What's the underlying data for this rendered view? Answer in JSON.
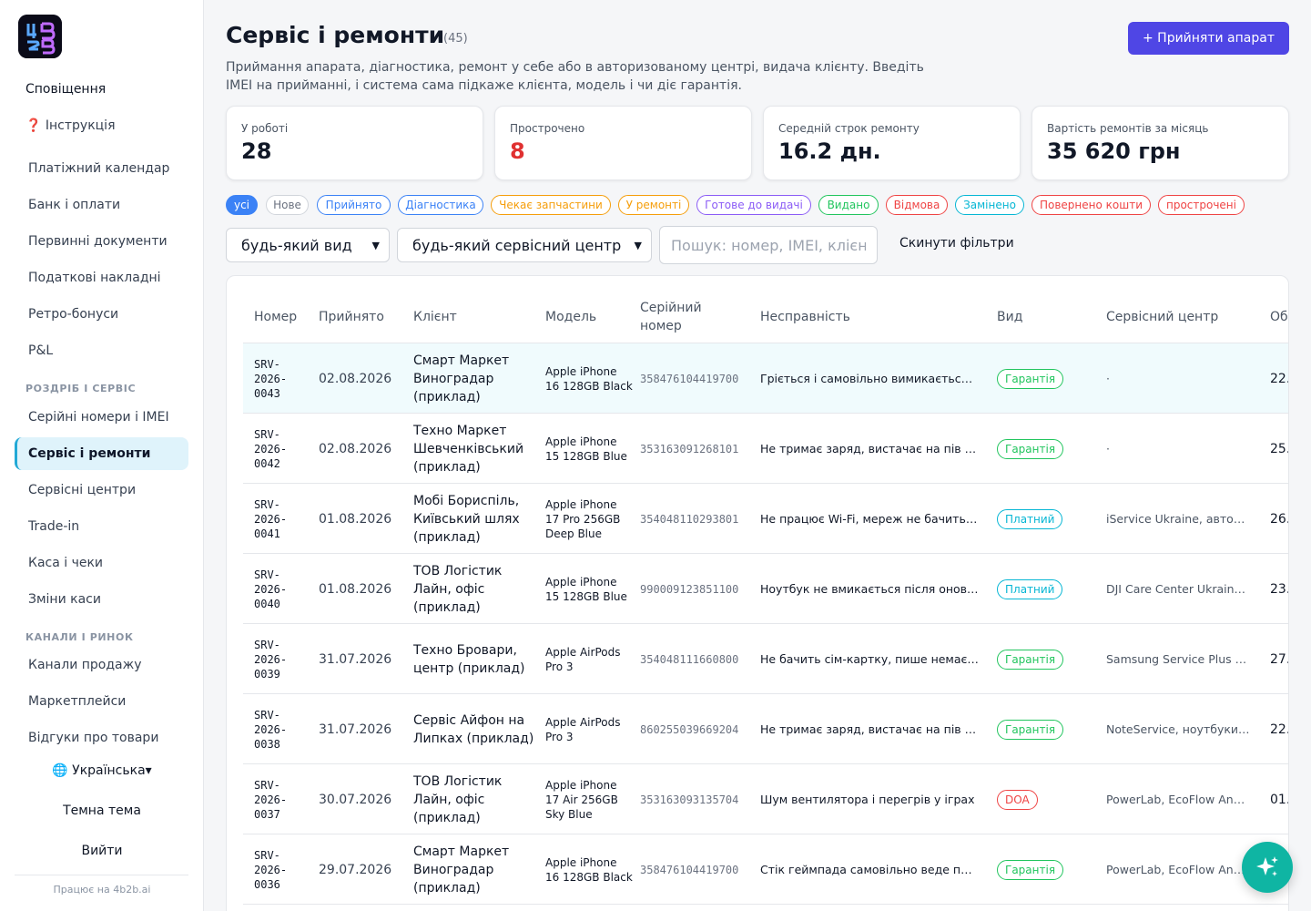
{
  "sidebar": {
    "notifications": "Сповіщення",
    "instructions": "❓ Інструкція",
    "items_top": [
      "Платіжний календар",
      "Банк і оплати",
      "Первинні документи",
      "Податкові накладні",
      "Ретро-бонуси",
      "P&L"
    ],
    "section_retail": "РОЗДРІБ І СЕРВІС",
    "items_retail": [
      "Серійні номери і IMEI",
      "Сервіс і ремонти",
      "Сервісні центри",
      "Trade-in",
      "Каса і чеки",
      "Зміни каси"
    ],
    "section_channels": "КАНАЛИ І РИНОК",
    "items_channels": [
      "Канали продажу",
      "Маркетплейси",
      "Відгуки про товари"
    ],
    "language": "🌐 Українська▾",
    "theme": "Темна тема",
    "logout": "Вийти",
    "powered": "Працює на 4b2b.ai"
  },
  "header": {
    "title": "Сервіс і ремонти",
    "count": "(45)",
    "description": "Приймання апарата, діагностика, ремонт у себе або в авторизованому центрі, видача клієнту. Введіть IMEI на прийманні, і система сама підкаже клієнта, модель і чи діє гарантія.",
    "primary_button": "+ Прийняти апарат"
  },
  "stats": [
    {
      "label": "У роботі",
      "value": "28"
    },
    {
      "label": "Прострочено",
      "value": "8"
    },
    {
      "label": "Середній строк ремонту",
      "value": "16.2 дн."
    },
    {
      "label": "Вартість ремонтів за місяць",
      "value": "35 620 грн"
    }
  ],
  "colors": {
    "accent": "#4f46e5",
    "active_nav": "#dff3fb",
    "overdue": "#e03131",
    "fab": "#0fb5a3"
  },
  "status_chips": [
    {
      "label": "усі",
      "color": "#3b82f6",
      "active": true
    },
    {
      "label": "Нове",
      "color": "#9ca3af"
    },
    {
      "label": "Прийнято",
      "color": "#3b82f6"
    },
    {
      "label": "Діагностика",
      "color": "#3b82f6"
    },
    {
      "label": "Чекає запчастини",
      "color": "#f59e0b"
    },
    {
      "label": "У ремонті",
      "color": "#f59e0b"
    },
    {
      "label": "Готове до видачі",
      "color": "#8b5cf6"
    },
    {
      "label": "Видано",
      "color": "#22c55e"
    },
    {
      "label": "Відмова",
      "color": "#ef4444"
    },
    {
      "label": "Замінено",
      "color": "#06b6d4"
    },
    {
      "label": "Повернено кошти",
      "color": "#ef4444"
    },
    {
      "label": "прострочені",
      "color": "#ef4444"
    }
  ],
  "filters": {
    "type_select": "будь-який вид",
    "center_select": "будь-який сервісний центр",
    "search_placeholder": "Пошук: номер, IMEI, клієнт",
    "reset": "Скинути фільтри"
  },
  "table": {
    "columns": [
      "Номер",
      "Прийнято",
      "Клієнт",
      "Модель",
      "Серійний номер",
      "Несправність",
      "Вид",
      "Сервісний центр",
      "Обі"
    ],
    "rows": [
      {
        "num": "SRV-2026-0043",
        "date": "02.08.2026",
        "client": "Смарт Маркет Виноградар (приклад)",
        "model": "Apple iPhone 16 128GB Black",
        "serial": "358476104419700",
        "issue": "Гріється і самовільно вимикається після оновлення",
        "type": "Гарантія",
        "type_color": "#22c55e",
        "center": "·",
        "due": "22.",
        "highlight": true
      },
      {
        "num": "SRV-2026-0042",
        "date": "02.08.2026",
        "client": "Техно Маркет Шевченківський (приклад)",
        "model": "Apple iPhone 15 128GB Blue",
        "serial": "353163091268101",
        "issue": "Не тримає заряд, вистачає на пів дня",
        "type": "Гарантія",
        "type_color": "#22c55e",
        "center": "·",
        "due": "25."
      },
      {
        "num": "SRV-2026-0041",
        "date": "01.08.2026",
        "client": "Мобі Бориспіль, Київський шлях (приклад)",
        "model": "Apple iPhone 17 Pro 256GB Deep Blue",
        "serial": "354048110293801",
        "issue": "Не працює Wi-Fi, мереж не бачить взагалі",
        "type": "Платний",
        "type_color": "#06b6d4",
        "center": "iService Ukraine, авторизований",
        "due": "26."
      },
      {
        "num": "SRV-2026-0040",
        "date": "01.08.2026",
        "client": "ТОВ Логістик Лайн, офіс (приклад)",
        "model": "Apple iPhone 15 128GB Blue",
        "serial": "990009123851100",
        "issue": "Ноутбук не вмикається після оновлення BIOS",
        "type": "Платний",
        "type_color": "#06b6d4",
        "center": "DJI Care Center Ukraine, Київ",
        "due": "23."
      },
      {
        "num": "SRV-2026-0039",
        "date": "31.07.2026",
        "client": "Техно Бровари, центр (приклад)",
        "model": "Apple AirPods Pro 3",
        "serial": "354048111660800",
        "issue": "Не бачить сім-картку, пише немає SIM",
        "type": "Гарантія",
        "type_color": "#22c55e",
        "center": "Samsung Service Plus (Київ)",
        "due": "27."
      },
      {
        "num": "SRV-2026-0038",
        "date": "31.07.2026",
        "client": "Сервіс Айфон на Липках (приклад)",
        "model": "Apple AirPods Pro 3",
        "serial": "860255039669204",
        "issue": "Не тримає заряд, вистачає на пів дня",
        "type": "Гарантія",
        "type_color": "#22c55e",
        "center": "NoteService, ноутбуки і планшети",
        "due": "22."
      },
      {
        "num": "SRV-2026-0037",
        "date": "30.07.2026",
        "client": "ТОВ Логістик Лайн, офіс (приклад)",
        "model": "Apple iPhone 17 Air 256GB Sky Blue",
        "serial": "353163093135704",
        "issue": "Шум вентилятора і перегрів у іграх",
        "type": "DOA",
        "type_color": "#ef4444",
        "center": "PowerLab, EcoFlow Anker сервіс",
        "due": "01."
      },
      {
        "num": "SRV-2026-0036",
        "date": "29.07.2026",
        "client": "Смарт Маркет Виноградар (приклад)",
        "model": "Apple iPhone 16 128GB Black",
        "serial": "358476104419700",
        "issue": "Стік геймпада самовільно веде персонажа",
        "type": "Гарантія",
        "type_color": "#22c55e",
        "center": "PowerLab, EcoFlow Anker сервіс",
        "due": "29."
      }
    ]
  }
}
